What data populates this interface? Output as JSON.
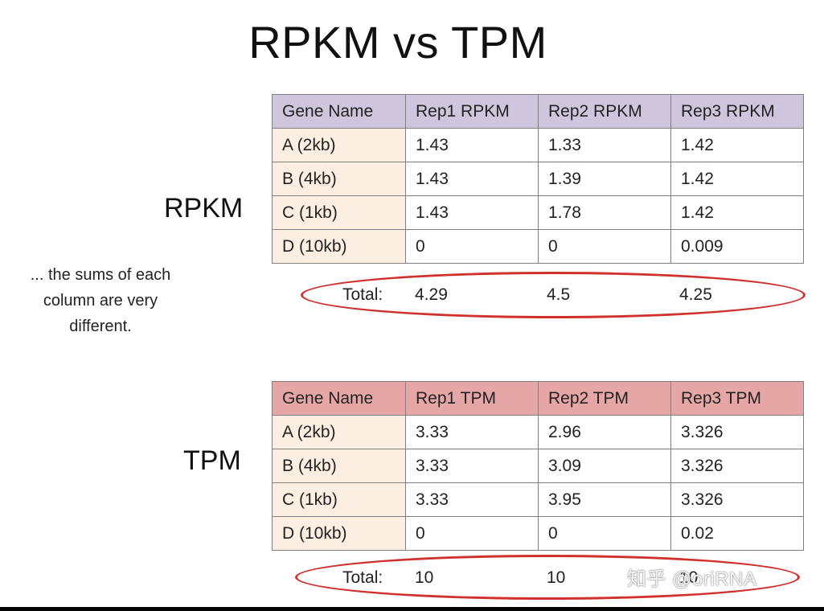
{
  "title": "RPKM vs TPM",
  "note": "... the sums of each column are very different.",
  "rpkm": {
    "label": "RPKM",
    "headers": [
      "Gene Name",
      "Rep1 RPKM",
      "Rep2 RPKM",
      "Rep3 RPKM"
    ],
    "rows": [
      [
        "A (2kb)",
        "1.43",
        "1.33",
        "1.42"
      ],
      [
        "B (4kb)",
        "1.43",
        "1.39",
        "1.42"
      ],
      [
        "C (1kb)",
        "1.43",
        "1.78",
        "1.42"
      ],
      [
        "D (10kb)",
        "0",
        "0",
        "0.009"
      ]
    ],
    "total_label": "Total:",
    "totals": [
      "4.29",
      "4.5",
      "4.25"
    ]
  },
  "tpm": {
    "label": "TPM",
    "headers": [
      "Gene Name",
      "Rep1 TPM",
      "Rep2 TPM",
      "Rep3 TPM"
    ],
    "rows": [
      [
        "A (2kb)",
        "3.33",
        "2.96",
        "3.326"
      ],
      [
        "B (4kb)",
        "3.33",
        "3.09",
        "3.326"
      ],
      [
        "C (1kb)",
        "3.33",
        "3.95",
        "3.326"
      ],
      [
        "D (10kb)",
        "0",
        "0",
        "0.02"
      ]
    ],
    "total_label": "Total:",
    "totals": [
      "10",
      "10",
      "10"
    ]
  },
  "watermark": "知乎 @oriRNA",
  "colors": {
    "rpkm_header": "#cfc6dd",
    "tpm_header": "#e6a6a6",
    "gene_column": "#fdeee2",
    "highlight_oval": "#d0312d"
  }
}
